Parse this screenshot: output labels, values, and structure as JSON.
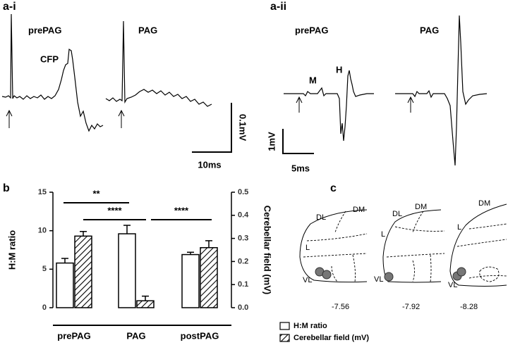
{
  "panel_a": {
    "ai_label": "a-i",
    "ai_prepag": "prePAG",
    "ai_pag": "PAG",
    "cfp": "CFP",
    "ai_scale_v": "0.1mV",
    "ai_scale_t": "10ms",
    "aii_label": "a-ii",
    "aii_prepag": "prePAG",
    "aii_pag": "PAG",
    "m": "M",
    "h": "H",
    "aii_scale_v": "1mV",
    "aii_scale_t": "5ms"
  },
  "chart_data": {
    "type": "bar",
    "panel_label": "b",
    "categories": [
      "prePAG",
      "PAG",
      "postPAG"
    ],
    "ylabel": "H:M ratio",
    "y2label": "Cerebellar field (mV)",
    "ylim": [
      0,
      15
    ],
    "yticks": [
      0,
      5,
      10,
      15
    ],
    "y2lim": [
      0,
      0.5
    ],
    "y2ticks": [
      {
        "value": 0,
        "label": "0.0"
      },
      0.1,
      0.2,
      0.3,
      0.4,
      0.5
    ],
    "series": [
      {
        "name": "H:M ratio",
        "color": "#ffffff",
        "hatch": false,
        "values": [
          5.8,
          9.6,
          6.9
        ],
        "errors": [
          0.6,
          1.1,
          0.3
        ]
      },
      {
        "name": "Cerebellar field (mV)",
        "color": "#ffffff",
        "hatch": true,
        "axis": "y2",
        "values": [
          0.31,
          0.03,
          0.26
        ],
        "errors": [
          0.02,
          0.02,
          0.03
        ]
      }
    ],
    "annotations": [
      {
        "text": "**"
      },
      {
        "text": "****"
      },
      {
        "text": "****"
      }
    ]
  },
  "panel_c": {
    "label": "c",
    "slices": [
      {
        "dm": "DM",
        "dl": "DL",
        "l": "L",
        "vl": "VL",
        "level": "-7.56"
      },
      {
        "dm": "DM",
        "dl": "DL",
        "l": "L",
        "vl": "VL",
        "level": "-7.92"
      },
      {
        "dm": "DM",
        "l": "L",
        "vl": "VL",
        "level": "-8.28"
      }
    ]
  }
}
